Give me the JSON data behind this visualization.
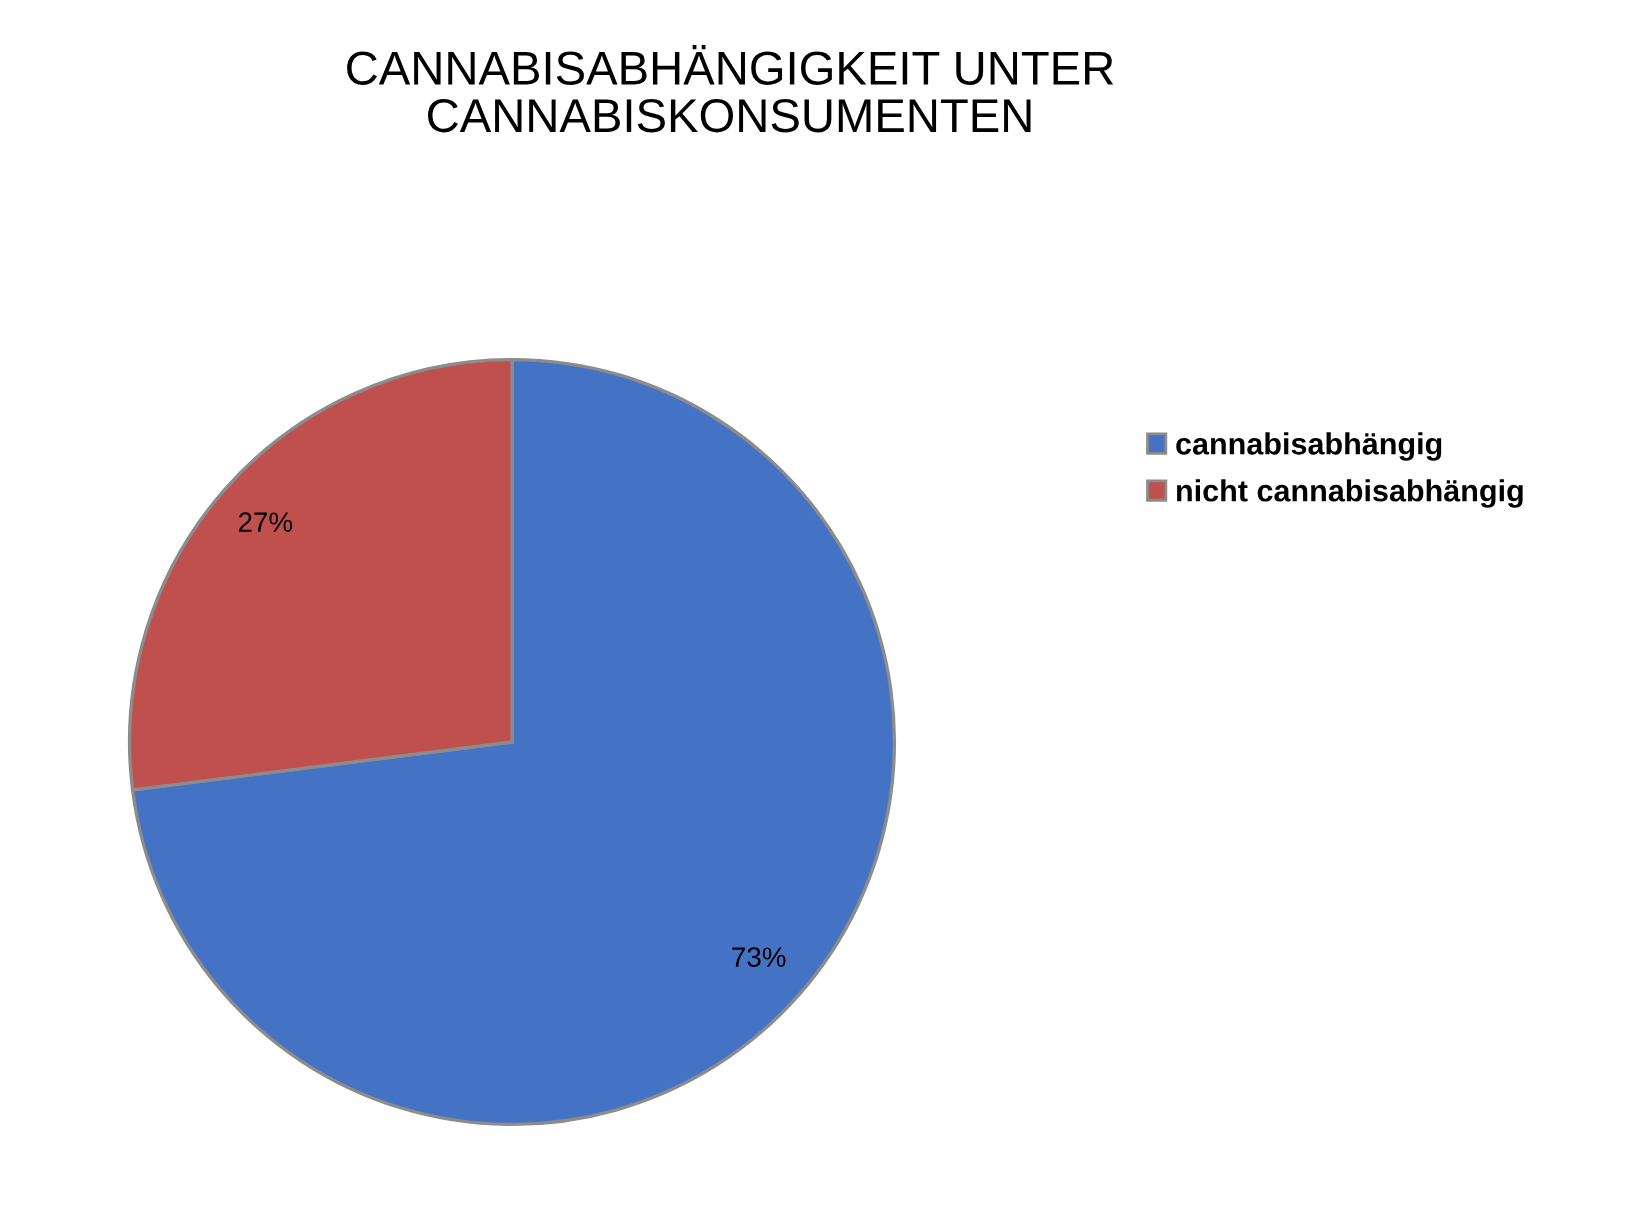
{
  "chart_data": {
    "type": "pie",
    "title": "CANNABISABHÄNGIGKEIT UNTER\nCANNABISKONSUMENTEN",
    "categories": [
      "cannabisabhängig",
      "nicht cannabisabhängig"
    ],
    "values": [
      73,
      27
    ],
    "colors": [
      "#4472c4",
      "#c0504d"
    ],
    "value_labels": [
      "73%",
      "27%"
    ],
    "legend": "right"
  }
}
